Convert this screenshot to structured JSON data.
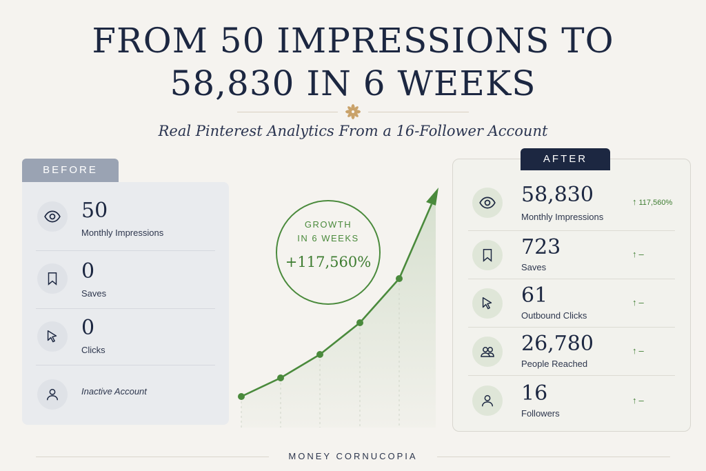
{
  "title": {
    "line1": "FROM 50 IMPRESSIONS TO",
    "line2": "58,830 IN 6 WEEKS"
  },
  "subtitle": "Real Pinterest Analytics From a 16-Follower Account",
  "before": {
    "tab": "BEFORE",
    "rows": [
      {
        "icon": "eye-icon",
        "value": "50",
        "label": "Monthly Impressions"
      },
      {
        "icon": "bookmark-icon",
        "value": "0",
        "label": "Saves"
      },
      {
        "icon": "cursor-icon",
        "value": "0",
        "label": "Clicks"
      },
      {
        "icon": "person-icon",
        "value": "",
        "label": "Inactive Account"
      }
    ]
  },
  "growth": {
    "label_line1": "GROWTH",
    "label_line2": "IN 6 WEEKS",
    "value": "+117,560%"
  },
  "after": {
    "tab": "AFTER",
    "rows": [
      {
        "icon": "eye-icon",
        "value": "58,830",
        "label": "Monthly Impressions",
        "change": "117,560%"
      },
      {
        "icon": "bookmark-icon",
        "value": "723",
        "label": "Saves",
        "change": "–"
      },
      {
        "icon": "cursor-icon",
        "value": "61",
        "label": "Outbound Clicks",
        "change": "–"
      },
      {
        "icon": "people-icon",
        "value": "26,780",
        "label": "People Reached",
        "change": "–"
      },
      {
        "icon": "person-icon",
        "value": "16",
        "label": "Followers",
        "change": "–"
      }
    ]
  },
  "footer": "MONEY CORNUCOPIA",
  "colors": {
    "navy": "#1c2741",
    "green": "#4a8a3c",
    "before_panel": "#e9ebee",
    "after_panel": "#f2f2ed",
    "background": "#f5f3ef"
  }
}
